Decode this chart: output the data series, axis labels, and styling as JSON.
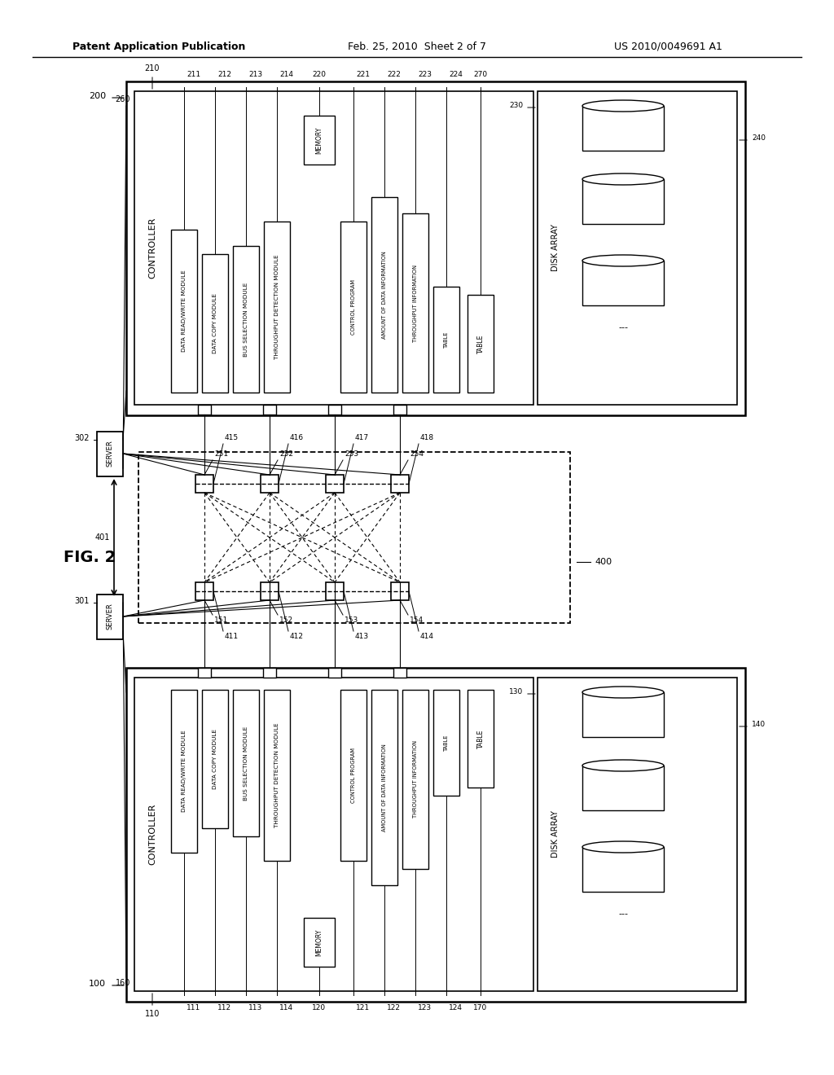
{
  "title_left": "Patent Application Publication",
  "title_mid": "Feb. 25, 2010  Sheet 2 of 7",
  "title_right": "US 2010/0049691 A1",
  "fig_label": "FIG. 2",
  "background": "#ffffff",
  "line_color": "#000000",
  "modules1": [
    "DATA READ/WRITE MODULE",
    "DATA COPY MODULE",
    "BUS SELECTION MODULE",
    "THROUGHPUT DETECTION MODULE"
  ],
  "modules1_nums": [
    "111",
    "112",
    "113",
    "114"
  ],
  "memory1_items": [
    "CONTROL PROGRAM",
    "AMOUNT OF DATA INFORMATION",
    "THROUGHPUT INFORMATION",
    "TABLE"
  ],
  "memory1_item_nums": [
    "121",
    "122",
    "123",
    "124"
  ],
  "modules2": [
    "DATA READ/WRITE MODULE",
    "DATA COPY MODULE",
    "BUS SELECTION MODULE",
    "THROUGHPUT DETECTION MODULE"
  ],
  "modules2_nums": [
    "211",
    "212",
    "213",
    "214"
  ],
  "memory2_items": [
    "CONTROL PROGRAM",
    "AMOUNT OF DATA INFORMATION",
    "THROUGHPUT INFORMATION",
    "TABLE"
  ],
  "memory2_item_nums": [
    "221",
    "222",
    "223",
    "224"
  ],
  "ports_top_labels": [
    "251",
    "252",
    "253",
    "254"
  ],
  "ports_top_nums": [
    "415",
    "416",
    "417",
    "418"
  ],
  "ports_bot_labels": [
    "151",
    "152",
    "153",
    "154"
  ],
  "ports_bot_nums": [
    "411",
    "412",
    "413",
    "414"
  ]
}
